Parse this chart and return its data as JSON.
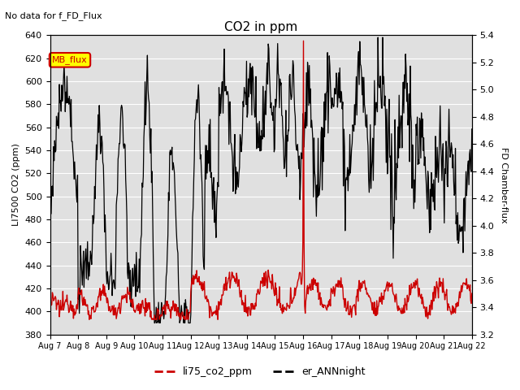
{
  "title": "CO2 in ppm",
  "subtitle": "No data for f_FD_Flux",
  "ylabel_left": "LI7500 CO2 (ppm)",
  "ylabel_right": "FD Chamber-flux",
  "ylim_left": [
    380,
    640
  ],
  "ylim_right": [
    3.2,
    5.4
  ],
  "yticks_left": [
    380,
    400,
    420,
    440,
    460,
    480,
    500,
    520,
    540,
    560,
    580,
    600,
    620,
    640
  ],
  "yticks_right": [
    3.2,
    3.4,
    3.6,
    3.8,
    4.0,
    4.2,
    4.4,
    4.6,
    4.8,
    5.0,
    5.2,
    5.4
  ],
  "xticklabels": [
    "Aug 7",
    "Aug 8",
    "Aug 9",
    "Aug 10",
    "Aug 11",
    "Aug 12",
    "Aug 13",
    "Aug 14",
    "Aug 15",
    "Aug 16",
    "Aug 17",
    "Aug 18",
    "Aug 19",
    "Aug 20",
    "Aug 21",
    "Aug 22"
  ],
  "legend_entries": [
    "li75_co2_ppm",
    "er_ANNnight"
  ],
  "legend_colors": [
    "#cc0000",
    "#000000"
  ],
  "mb_flux_box_color": "#ffff00",
  "mb_flux_text_color": "#cc0000",
  "mb_flux_border_color": "#cc0000",
  "line_color_red": "#cc0000",
  "line_color_black": "#000000",
  "background_color": "#e0e0e0",
  "grid_color": "#ffffff"
}
